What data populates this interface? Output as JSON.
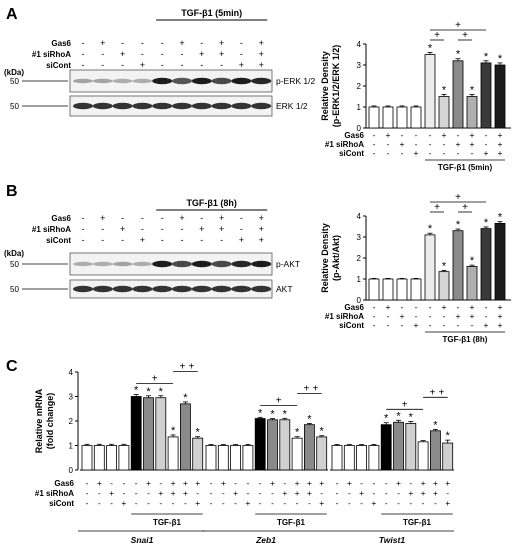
{
  "panels": {
    "A": {
      "letter": "A",
      "treatment_label": "TGF-β1 (5min)",
      "row_labels": [
        "Gas6",
        "#1 siRhoA",
        "siCont"
      ],
      "kda_label": "(kDa)",
      "marker": "50",
      "blots": [
        "p-ERK 1/2",
        "ERK 1/2"
      ],
      "signs": [
        [
          "-",
          "+",
          "-",
          "-",
          "-",
          "+",
          "-",
          "+",
          "-",
          "+"
        ],
        [
          "-",
          "-",
          "+",
          "-",
          "-",
          "-",
          "+",
          "+",
          "-",
          "+"
        ],
        [
          "-",
          "-",
          "-",
          "+",
          "-",
          "-",
          "-",
          "-",
          "+",
          "+"
        ]
      ]
    },
    "B": {
      "letter": "B",
      "treatment_label": "TGF-β1 (8h)",
      "row_labels": [
        "Gas6",
        "#1 siRhoA",
        "siCont"
      ],
      "kda_label": "(kDa)",
      "marker": "50",
      "blots": [
        "p-AKT",
        "AKT"
      ],
      "signs": [
        [
          "-",
          "+",
          "-",
          "-",
          "-",
          "+",
          "-",
          "+",
          "-",
          "+"
        ],
        [
          "-",
          "-",
          "+",
          "-",
          "-",
          "-",
          "+",
          "+",
          "-",
          "+"
        ],
        [
          "-",
          "-",
          "-",
          "+",
          "-",
          "-",
          "-",
          "-",
          "+",
          "+"
        ]
      ]
    },
    "C": {
      "letter": "C"
    }
  },
  "chart_data": [
    {
      "type": "bar",
      "id": "A-density",
      "ylabel": "Relative Density (p-ERK1/2/ERK 1/2)",
      "ylim": [
        0,
        4
      ],
      "yticks": [
        "0",
        "1",
        "2",
        "3",
        "4"
      ],
      "values": [
        1.0,
        1.0,
        1.0,
        1.0,
        3.5,
        1.5,
        3.2,
        1.5,
        3.1,
        3.0
      ],
      "errors": [
        0.05,
        0.05,
        0.05,
        0.05,
        0.1,
        0.1,
        0.1,
        0.1,
        0.1,
        0.1
      ],
      "colors": [
        "#ffffff",
        "#ffffff",
        "#ffffff",
        "#ffffff",
        "#ececec",
        "#d6d6d6",
        "#8a8a8a",
        "#b0b0b0",
        "#3a3a3a",
        "#1a1a1a"
      ],
      "asterisks": [
        4,
        5,
        6,
        7,
        8,
        9
      ],
      "row_labels": [
        "Gas6",
        "#1 siRhoA",
        "siCont"
      ],
      "signs": [
        [
          "-",
          "+",
          "-",
          "-",
          "-",
          "+",
          "-",
          "+",
          "-",
          "+"
        ],
        [
          "-",
          "-",
          "+",
          "-",
          "-",
          "-",
          "+",
          "+",
          "-",
          "+"
        ],
        [
          "-",
          "-",
          "-",
          "+",
          "-",
          "-",
          "-",
          "-",
          "+",
          "+"
        ]
      ],
      "group_label": "TGF-β1 (5min)",
      "significance": [
        [
          4,
          5
        ],
        [
          6,
          7
        ],
        [
          4,
          8
        ]
      ],
      "sig_mark": "+",
      "star": "*"
    },
    {
      "type": "bar",
      "id": "B-density",
      "ylabel": "Relative Density (p-Akt/Akt)",
      "ylim": [
        0,
        4
      ],
      "yticks": [
        "0",
        "1",
        "2",
        "3",
        "4"
      ],
      "values": [
        1.0,
        1.0,
        1.0,
        1.0,
        3.1,
        1.35,
        3.3,
        1.6,
        3.4,
        3.65
      ],
      "errors": [
        0.03,
        0.03,
        0.03,
        0.03,
        0.08,
        0.06,
        0.08,
        0.06,
        0.08,
        0.08
      ],
      "colors": [
        "#ffffff",
        "#ffffff",
        "#ffffff",
        "#ffffff",
        "#ececec",
        "#d6d6d6",
        "#8a8a8a",
        "#b0b0b0",
        "#3a3a3a",
        "#1a1a1a"
      ],
      "asterisks": [
        4,
        5,
        6,
        7,
        8,
        9
      ],
      "row_labels": [
        "Gas6",
        "#1 siRhoA",
        "siCont"
      ],
      "signs": [
        [
          "-",
          "+",
          "-",
          "-",
          "-",
          "+",
          "-",
          "+",
          "-",
          "+"
        ],
        [
          "-",
          "-",
          "+",
          "-",
          "-",
          "-",
          "+",
          "+",
          "-",
          "+"
        ],
        [
          "-",
          "-",
          "-",
          "+",
          "-",
          "-",
          "-",
          "-",
          "+",
          "+"
        ]
      ],
      "group_label": "TGF-β1 (8h)",
      "significance": [
        [
          4,
          5
        ],
        [
          6,
          7
        ],
        [
          4,
          8
        ]
      ],
      "sig_mark": "+",
      "star": "*"
    },
    {
      "type": "bar",
      "id": "C-mrna",
      "ylabel": "Relative mRNA (fold change)",
      "ylim": [
        0,
        4
      ],
      "yticks": [
        "0",
        "1",
        "2",
        "3",
        "4"
      ],
      "row_labels": [
        "Gas6",
        "#1 siRhoA",
        "siCont"
      ],
      "colors": [
        "#ffffff",
        "#ffffff",
        "#ffffff",
        "#ffffff",
        "#000000",
        "#8a8a8a",
        "#d0d0d0",
        "#ffffff",
        "#8a8a8a",
        "#d0d0d0"
      ],
      "signs": [
        [
          "-",
          "+",
          "-",
          "-",
          "-",
          "+",
          "-",
          "+",
          "+",
          "+"
        ],
        [
          "-",
          "-",
          "+",
          "-",
          "-",
          "-",
          "+",
          "+",
          "+",
          "-"
        ],
        [
          "-",
          "-",
          "-",
          "+",
          "-",
          "-",
          "-",
          "-",
          "-",
          "+"
        ]
      ],
      "group_label": "TGF-β1",
      "sig_mark": "+",
      "star": "*",
      "genes": [
        {
          "name": "Snai1",
          "values": [
            1.0,
            1.0,
            1.0,
            1.0,
            3.0,
            2.95,
            2.95,
            1.35,
            2.7,
            1.3
          ],
          "errors": [
            0.05,
            0.05,
            0.05,
            0.05,
            0.08,
            0.08,
            0.08,
            0.08,
            0.08,
            0.06
          ],
          "asterisks": [
            4,
            5,
            6,
            7,
            8,
            9
          ]
        },
        {
          "name": "Zeb1",
          "values": [
            1.0,
            1.0,
            1.0,
            1.0,
            2.1,
            2.05,
            2.05,
            1.3,
            1.85,
            1.35
          ],
          "errors": [
            0.04,
            0.04,
            0.04,
            0.04,
            0.05,
            0.05,
            0.06,
            0.06,
            0.05,
            0.05
          ],
          "asterisks": [
            4,
            5,
            6,
            7,
            8,
            9
          ]
        },
        {
          "name": "Twist1",
          "values": [
            1.0,
            1.0,
            1.0,
            1.0,
            1.85,
            1.95,
            1.9,
            1.15,
            1.6,
            1.1
          ],
          "errors": [
            0.04,
            0.04,
            0.04,
            0.04,
            0.08,
            0.08,
            0.08,
            0.05,
            0.06,
            0.12
          ],
          "asterisks": [
            4,
            5,
            6,
            8,
            9
          ]
        }
      ]
    }
  ]
}
